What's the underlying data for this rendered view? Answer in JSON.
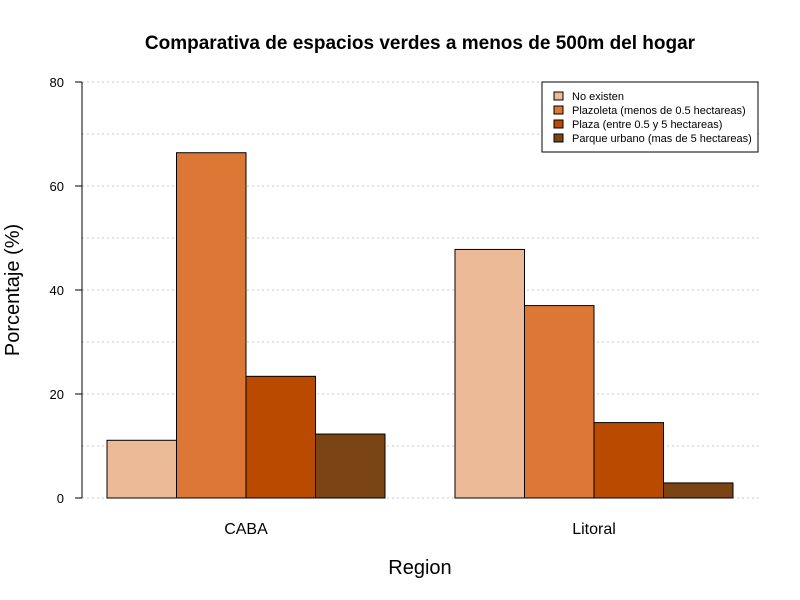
{
  "chart_data": {
    "type": "bar",
    "title": "Comparativa de espacios verdes a menos de 500m del hogar",
    "xlabel": "Region",
    "ylabel": "Porcentaje (%)",
    "categories": [
      "CABA",
      "Litoral"
    ],
    "ylim": [
      0,
      80
    ],
    "yticks": [
      0,
      20,
      40,
      60,
      80
    ],
    "grid": true,
    "legend_position": "top-right",
    "series": [
      {
        "name": "No existen",
        "color": "#EDBA98",
        "values": [
          11.1,
          47.8
        ]
      },
      {
        "name": "Plazoleta (menos de 0.5 hectareas)",
        "color": "#DD7735",
        "values": [
          66.4,
          37.0
        ]
      },
      {
        "name": "Plaza (entre 0.5 y 5 hectareas)",
        "color": "#BA4A00",
        "values": [
          23.4,
          14.5
        ]
      },
      {
        "name": "Parque urbano (mas de 5 hectareas)",
        "color": "#7B4414",
        "values": [
          12.3,
          2.9
        ]
      }
    ]
  }
}
